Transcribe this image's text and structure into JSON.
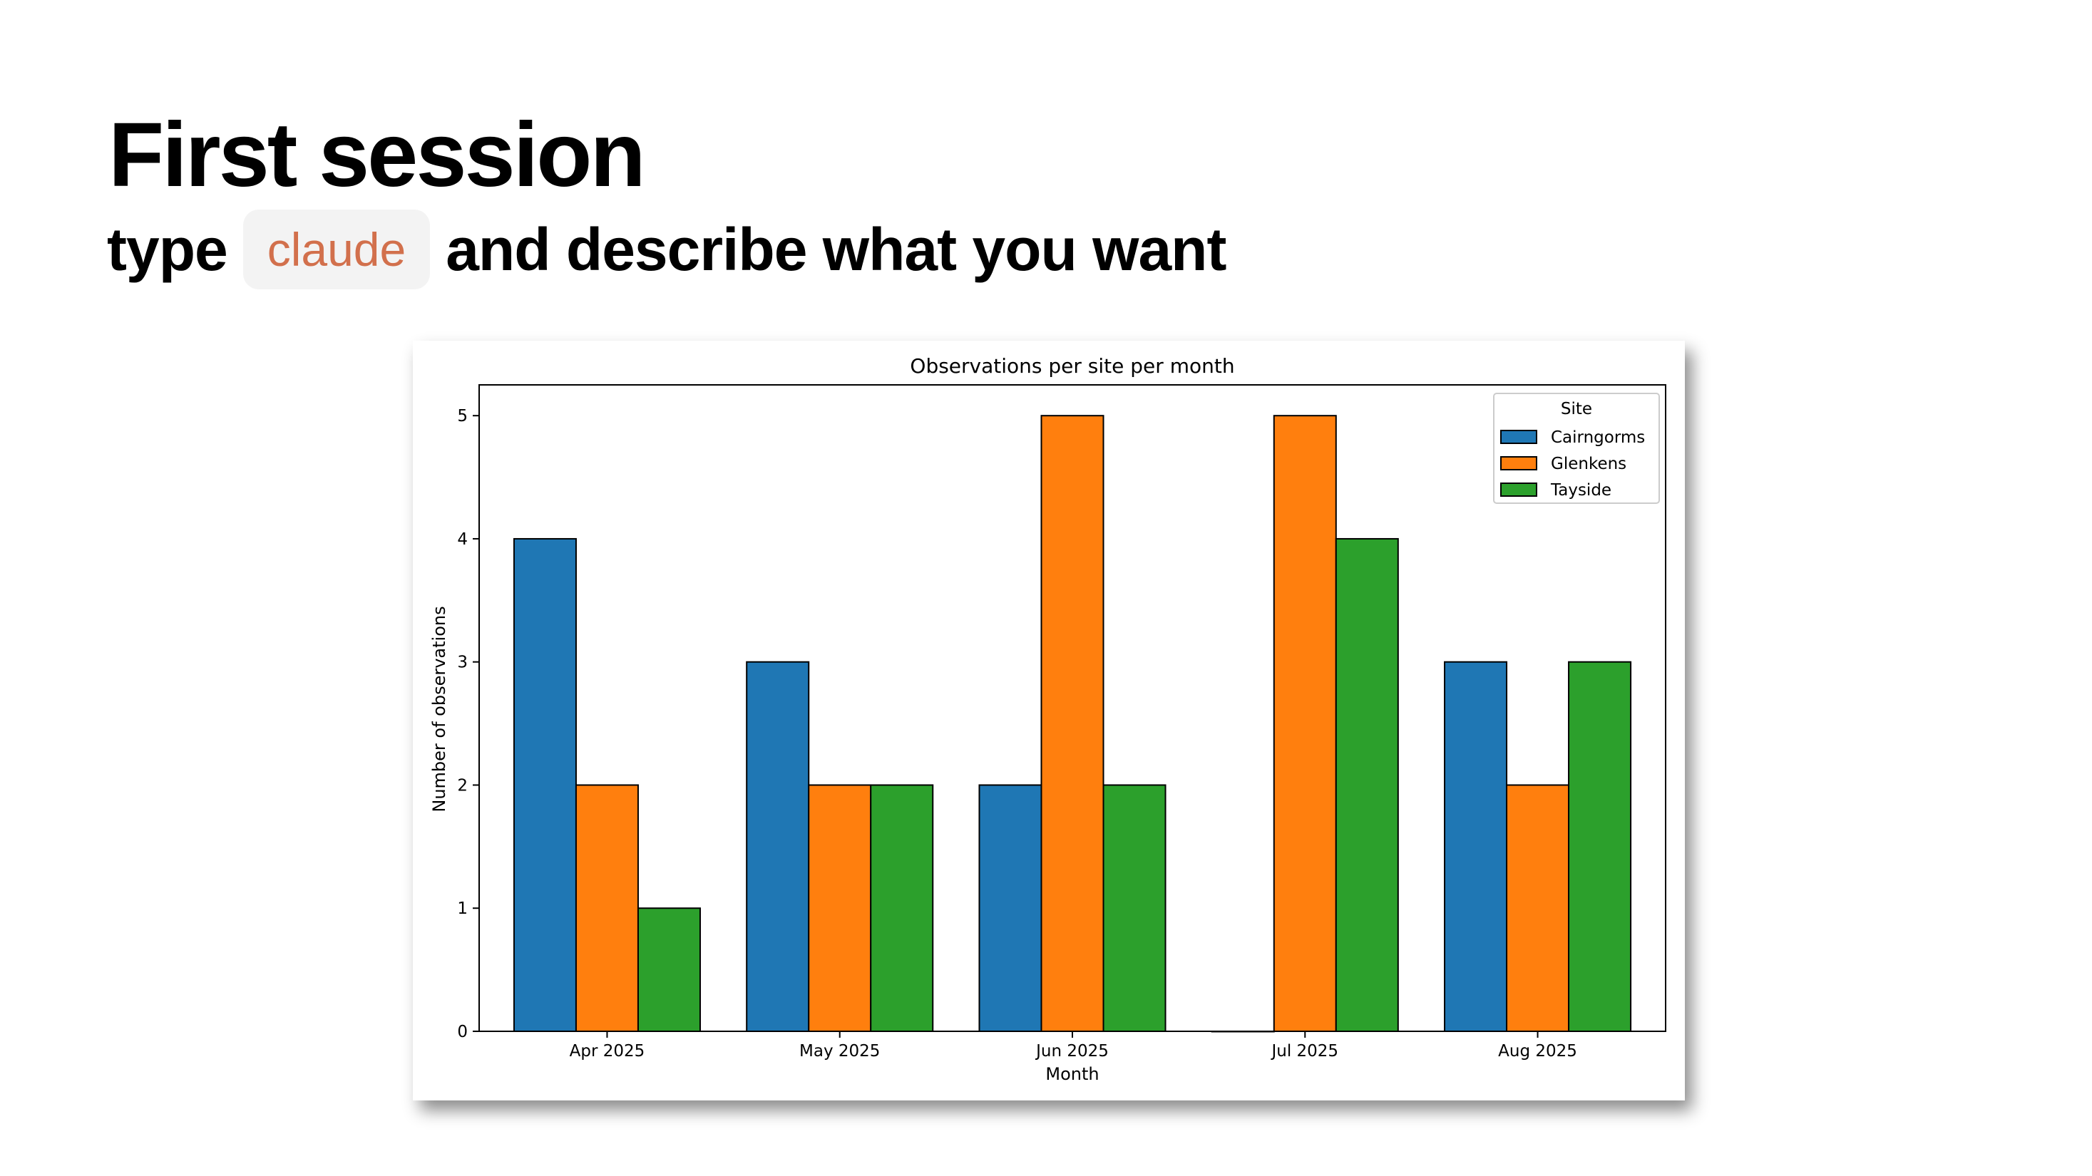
{
  "slide": {
    "title": "First session",
    "subtitle_before": "type",
    "command": "claude",
    "subtitle_after": "and describe what you want"
  },
  "chart_data": {
    "type": "bar",
    "title": "Observations per site per month",
    "xlabel": "Month",
    "ylabel": "Number of observations",
    "categories": [
      "Apr 2025",
      "May 2025",
      "Jun 2025",
      "Jul 2025",
      "Aug 2025"
    ],
    "series": [
      {
        "name": "Cairngorms",
        "values": [
          4,
          3,
          2,
          0,
          3
        ],
        "color": "#1f77b4"
      },
      {
        "name": "Glenkens",
        "values": [
          2,
          2,
          5,
          5,
          2
        ],
        "color": "#ff7f0e"
      },
      {
        "name": "Tayside",
        "values": [
          1,
          2,
          2,
          4,
          3
        ],
        "color": "#2ca02c"
      }
    ],
    "ylim": [
      0,
      5.25
    ],
    "yticks": [
      0,
      1,
      2,
      3,
      4,
      5
    ],
    "legend": {
      "title": "Site",
      "placement": "top-right"
    },
    "grid": false
  }
}
